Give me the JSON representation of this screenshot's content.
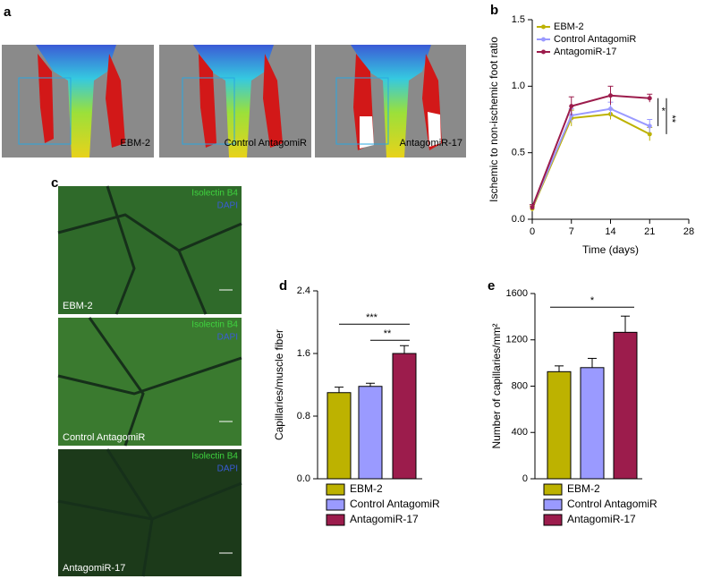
{
  "panel_letters": [
    "a",
    "b",
    "c",
    "d",
    "e"
  ],
  "panel_a": {
    "labels": [
      "EBM-2",
      "Control AntagomiR",
      "AntagomiR-17"
    ]
  },
  "panel_c": {
    "stain_green": "Isolectin B4",
    "stain_blue": "DAPI",
    "labels": [
      "EBM-2",
      "Control AntagomiR",
      "AntagomiR-17"
    ]
  },
  "chart_data": [
    {
      "type": "line",
      "x_label": "Time (days)",
      "y_label": "Ischemic to non-ischemic foot ratio",
      "x": [
        0,
        7,
        14,
        21
      ],
      "xlim": [
        0,
        28
      ],
      "xticks": [
        0,
        7,
        14,
        21,
        28
      ],
      "ylim": [
        0,
        1.5
      ],
      "yticks": [
        {
          "value": 0,
          "label": "0.0"
        },
        {
          "value": 0.5,
          "label": "0.5"
        },
        {
          "value": 1,
          "label": "1.0"
        },
        {
          "value": 1.5,
          "label": "1.5"
        }
      ],
      "legend": "top-left",
      "series": [
        {
          "name": "EBM-2",
          "color": "#bdb200",
          "values": [
            0.08,
            0.76,
            0.79,
            0.64
          ],
          "errors": [
            0.02,
            0.06,
            0.04,
            0.05
          ]
        },
        {
          "name": "Control AntagomiR",
          "color": "#9a9aff",
          "values": [
            0.09,
            0.78,
            0.83,
            0.7
          ],
          "errors": [
            0.02,
            0.05,
            0.05,
            0.05
          ]
        },
        {
          "name": "AntagomiR-17",
          "color": "#9c1c4c",
          "values": [
            0.09,
            0.85,
            0.93,
            0.91
          ],
          "errors": [
            0.02,
            0.07,
            0.07,
            0.03
          ]
        }
      ],
      "annotations": [
        "*",
        "**"
      ]
    },
    {
      "type": "bar",
      "y_label": "Capillaries/muscle fiber",
      "categories": [
        "EBM-2",
        "Control AntagomiR",
        "AntagomiR-17"
      ],
      "values": [
        1.1,
        1.18,
        1.6
      ],
      "errors": [
        0.07,
        0.04,
        0.1
      ],
      "colors": [
        "#bdb200",
        "#9a9aff",
        "#9c1c4c"
      ],
      "ylim": [
        0,
        2.4
      ],
      "yticks": [
        {
          "value": 0,
          "label": "0.0"
        },
        {
          "value": 0.8,
          "label": "0.8"
        },
        {
          "value": 1.6,
          "label": "1.6"
        },
        {
          "value": 2.4,
          "label": "2.4"
        }
      ],
      "annotations": [
        "***",
        "**"
      ]
    },
    {
      "type": "bar",
      "y_label": "Number of capillaries/mm²",
      "categories": [
        "EBM-2",
        "Control AntagomiR",
        "AntagomiR-17"
      ],
      "values": [
        925,
        960,
        1265
      ],
      "errors": [
        50,
        80,
        140
      ],
      "colors": [
        "#bdb200",
        "#9a9aff",
        "#9c1c4c"
      ],
      "ylim": [
        0,
        1600
      ],
      "yticks": [
        0,
        400,
        800,
        1200,
        1600
      ],
      "annotations": [
        "*"
      ]
    }
  ]
}
